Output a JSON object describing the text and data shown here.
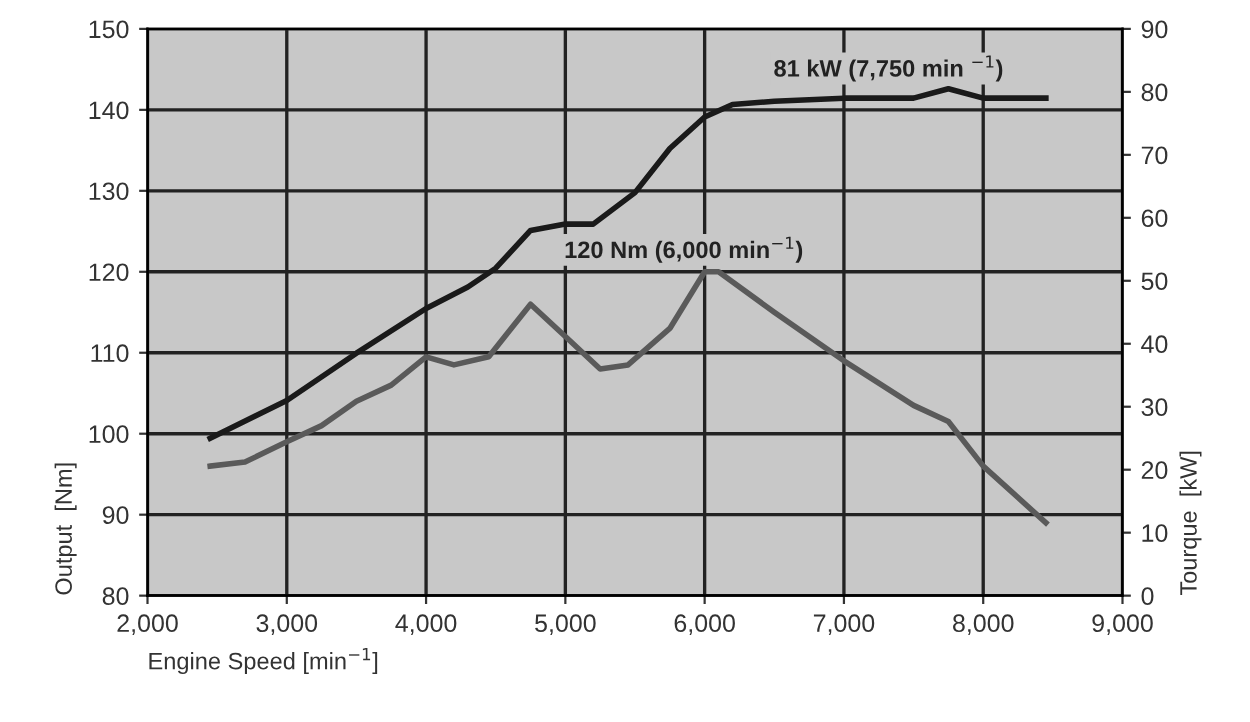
{
  "chart_data": {
    "type": "line",
    "xlabel": "Engine Speed [min$^{−1}$]",
    "ylabel": "Output  [Nm]",
    "y2label": "Tourque  [kW]",
    "xlim": [
      2000,
      9000
    ],
    "xticks": [
      {
        "value": 2000,
        "label": "2,000"
      },
      {
        "value": 3000,
        "label": "3,000"
      },
      {
        "value": 4000,
        "label": "4,000"
      },
      {
        "value": 5000,
        "label": "5,000"
      },
      {
        "value": 6000,
        "label": "6,000"
      },
      {
        "value": 7000,
        "label": "7,000"
      },
      {
        "value": 8000,
        "label": "8,000"
      },
      {
        "value": 9000,
        "label": "9,000"
      }
    ],
    "ylim": [
      80,
      150
    ],
    "yticks": [
      80,
      90,
      100,
      110,
      120,
      130,
      140,
      150
    ],
    "y2lim": [
      0,
      90
    ],
    "y2ticks": [
      0,
      10,
      20,
      30,
      40,
      50,
      60,
      70,
      80,
      90
    ],
    "grid": true,
    "legend": false,
    "series": [
      {
        "color": "#1a1a1a",
        "axis": "y2",
        "x": [
          2450,
          3000,
          3500,
          4000,
          4300,
          4500,
          4750,
          5000,
          5200,
          5500,
          5750,
          6000,
          6200,
          6500,
          7000,
          7500,
          7750,
          8000,
          8450
        ],
        "values": [
          25,
          31,
          38.5,
          45.6,
          49,
          52,
          58,
          59,
          59,
          64,
          71,
          76,
          78,
          78.5,
          79,
          79,
          80.5,
          79,
          79
        ]
      },
      {
        "color": "#5a5a5a",
        "axis": "y",
        "x": [
          2450,
          2700,
          3000,
          3250,
          3500,
          3750,
          4000,
          4200,
          4450,
          4750,
          5000,
          5250,
          5450,
          5750,
          6000,
          6100,
          6500,
          7000,
          7500,
          7750,
          8000,
          8450
        ],
        "values": [
          96,
          96.5,
          99,
          101,
          104,
          106,
          109.5,
          108.5,
          109.5,
          116,
          112,
          108,
          108.5,
          113,
          120,
          120,
          115,
          109,
          103.5,
          101.5,
          96,
          89
        ]
      }
    ],
    "annotations": [
      "81 kW (7,750 min $^{−1}$)",
      "120 Nm (6,000 min$^{−1}$)"
    ]
  }
}
